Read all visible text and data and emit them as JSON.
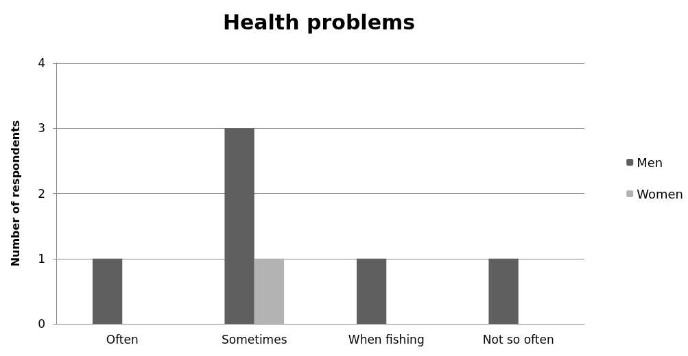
{
  "chart_data": {
    "type": "bar",
    "title": "Health problems",
    "ylabel": "Number of respondents",
    "categories": [
      "Often",
      "Sometimes",
      "When fishing",
      "Not so often"
    ],
    "series": [
      {
        "name": "Men",
        "color": "#5f5f5f",
        "values": [
          1,
          3,
          1,
          1
        ]
      },
      {
        "name": "Women",
        "color": "#b3b3b3",
        "values": [
          0,
          1,
          0,
          0
        ]
      }
    ],
    "ylim": [
      0,
      4
    ],
    "yticks": [
      0,
      1,
      2,
      3,
      4
    ],
    "grid": "y",
    "legend": "right"
  }
}
